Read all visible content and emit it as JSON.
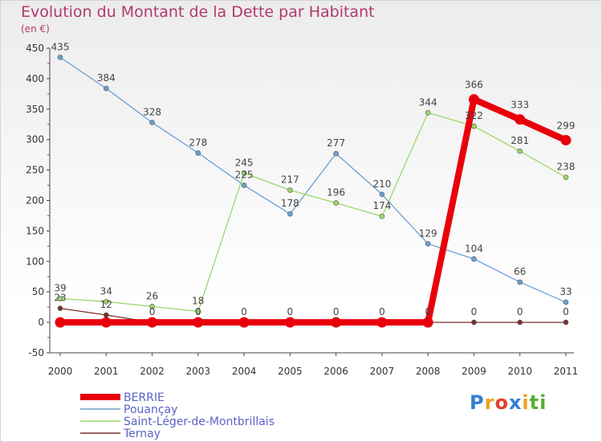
{
  "header": {
    "title": "Evolution du Montant de la Dette par Habitant",
    "unit": "(en €)"
  },
  "brand": {
    "letters": [
      "P",
      "r",
      "o",
      "x",
      "i",
      "ti"
    ]
  },
  "chart_data": {
    "type": "line",
    "x": [
      "2000",
      "2001",
      "2002",
      "2003",
      "2004",
      "2005",
      "2006",
      "2007",
      "2008",
      "2009",
      "2010",
      "2011"
    ],
    "ylim": [
      -50,
      450
    ],
    "yticks": [
      "450",
      "400",
      "350",
      "300",
      "250",
      "200",
      "150",
      "100",
      "50",
      "0",
      "-50"
    ],
    "grid": false,
    "legend": "bottom-left",
    "series": [
      {
        "name": "BERRIE",
        "color": "#e8000b",
        "values": [
          0,
          0,
          0,
          0,
          0,
          0,
          0,
          0,
          0,
          366,
          333,
          299
        ],
        "labels": [
          "",
          "",
          "",
          "",
          "",
          "",
          "",
          "",
          "",
          "366",
          "333",
          "299"
        ]
      },
      {
        "name": "Pouançay",
        "color": "#6a9fd4",
        "values": [
          435,
          384,
          328,
          278,
          225,
          178,
          277,
          210,
          129,
          104,
          66,
          33
        ],
        "labels": [
          "435",
          "384",
          "328",
          "278",
          "225",
          "178",
          "277",
          "210",
          "129",
          "104",
          "66",
          "33"
        ]
      },
      {
        "name": "Saint-Léger-de-Montbrillais",
        "color": "#9ad86a",
        "values": [
          39,
          34,
          26,
          18,
          245,
          217,
          196,
          174,
          344,
          322,
          281,
          238
        ],
        "labels": [
          "39",
          "34",
          "26",
          "18",
          "245",
          "217",
          "196",
          "174",
          "344",
          "322",
          "281",
          "238"
        ]
      },
      {
        "name": "Ternay",
        "color": "#7a3030",
        "values": [
          23,
          12,
          0,
          0,
          0,
          0,
          0,
          0,
          0,
          0,
          0,
          0
        ],
        "labels": [
          "23",
          "12",
          "0",
          "0",
          "0",
          "0",
          "0",
          "0",
          "0",
          "0",
          "0",
          "0"
        ]
      }
    ]
  }
}
